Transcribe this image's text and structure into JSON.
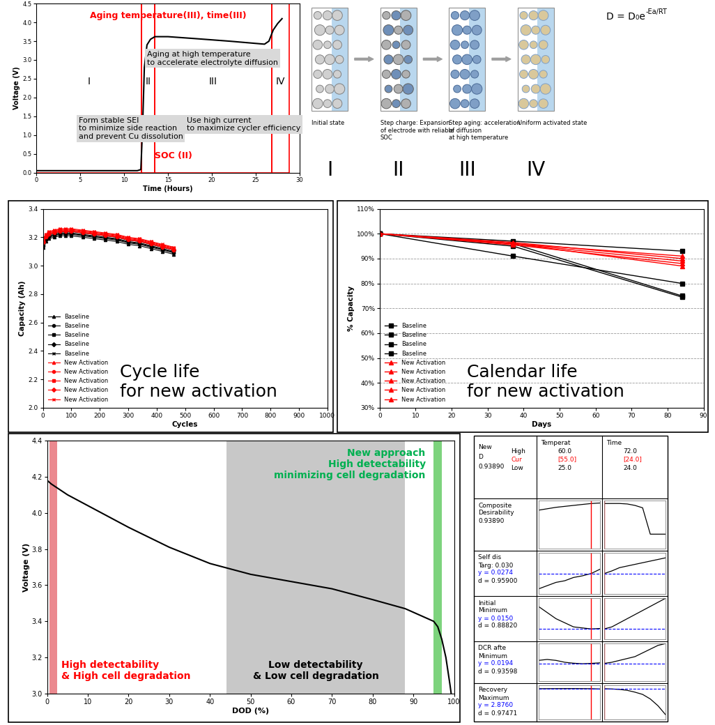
{
  "chart_data": [
    {
      "type": "line",
      "xlabel": "Time (Hours)",
      "ylabel": "Voltage (V)",
      "x": [
        0,
        5,
        11.5,
        11.9,
        12.1,
        12.3,
        12.6,
        13.0,
        13.5,
        15,
        18,
        22,
        26,
        26.5,
        27,
        27.5,
        28
      ],
      "values": [
        0.05,
        0.05,
        0.05,
        0.08,
        1.2,
        2.8,
        3.4,
        3.55,
        3.62,
        3.62,
        3.57,
        3.5,
        3.42,
        3.5,
        3.8,
        3.97,
        4.1
      ],
      "color": "#000000",
      "xlim": [
        0,
        30
      ],
      "ylim": [
        0,
        4.5
      ],
      "xticks": [
        0,
        5,
        10,
        15,
        20,
        25,
        30
      ],
      "yticks": [
        {
          "value": 0,
          "label": "0.0"
        },
        {
          "value": 0.5,
          "label": "0.5"
        },
        {
          "value": 1,
          "label": "1.0"
        },
        {
          "value": 1.5,
          "label": "1.5"
        },
        {
          "value": 2,
          "label": "2.0"
        },
        {
          "value": 2.5,
          "label": "2.5"
        },
        {
          "value": 3,
          "label": "3.0"
        },
        {
          "value": 3.5,
          "label": "3.5"
        },
        {
          "value": 4,
          "label": "4.0"
        },
        {
          "value": 4.5,
          "label": "4.5"
        }
      ],
      "regions": [
        {
          "label": "I",
          "x": [
            0,
            12
          ],
          "color": "#ff0000"
        },
        {
          "label": "II",
          "x": [
            12,
            13.5
          ],
          "color": "#ff0000"
        },
        {
          "label": "III",
          "x": [
            13.5,
            26.8
          ],
          "color": "#ff0000"
        },
        {
          "label": "IV",
          "x": [
            26.8,
            28.8
          ],
          "color": "#ff0000"
        }
      ],
      "annotations": [
        {
          "text": "Aging temperature(III), time(III)",
          "color": "#ff0000"
        },
        {
          "text": "Aging at high temperature\nto accelerate electrolyte diffusion",
          "color": "#000000"
        },
        {
          "text": "Form stable SEI\nto minimize side reaction\nand prevent Cu dissolution",
          "color": "#000000"
        },
        {
          "text": "Use high current\nto maximize cycler efficiency",
          "color": "#000000"
        },
        {
          "text": "SOC (II)",
          "color": "#ff0000"
        }
      ]
    },
    {
      "type": "line",
      "xlabel": "Cycles",
      "ylabel": "Capacity (Ah)",
      "x": [
        1,
        10,
        20,
        40,
        60,
        80,
        100,
        140,
        180,
        220,
        260,
        300,
        340,
        380,
        420,
        460
      ],
      "xlim": [
        0,
        1000
      ],
      "ylim": [
        2.0,
        3.4
      ],
      "xticks": [
        0,
        100,
        200,
        300,
        400,
        500,
        600,
        700,
        800,
        900,
        1000
      ],
      "yticks": [
        {
          "value": 2.0,
          "label": "2.0"
        },
        {
          "value": 2.2,
          "label": "2.2"
        },
        {
          "value": 2.4,
          "label": "2.4"
        },
        {
          "value": 2.6,
          "label": "2.6"
        },
        {
          "value": 2.8,
          "label": "2.8"
        },
        {
          "value": 3.0,
          "label": "3.0"
        },
        {
          "value": 3.2,
          "label": "3.2"
        },
        {
          "value": 3.4,
          "label": "3.4"
        }
      ],
      "legend": "lower left",
      "annotation": "Cycle life\nfor new activation",
      "series": [
        {
          "name": "Baseline",
          "color": "#000000",
          "marker": "triangle",
          "values": [
            3.13,
            3.17,
            3.19,
            3.2,
            3.21,
            3.21,
            3.21,
            3.2,
            3.19,
            3.18,
            3.17,
            3.15,
            3.14,
            3.12,
            3.1,
            3.08
          ]
        },
        {
          "name": "Baseline",
          "color": "#000000",
          "marker": "circle",
          "values": [
            3.14,
            3.18,
            3.2,
            3.21,
            3.22,
            3.22,
            3.22,
            3.21,
            3.2,
            3.19,
            3.18,
            3.16,
            3.15,
            3.13,
            3.11,
            3.09
          ]
        },
        {
          "name": "Baseline",
          "color": "#000000",
          "marker": "square",
          "values": [
            3.15,
            3.19,
            3.21,
            3.22,
            3.23,
            3.23,
            3.23,
            3.22,
            3.21,
            3.2,
            3.19,
            3.17,
            3.16,
            3.14,
            3.12,
            3.1
          ]
        },
        {
          "name": "Baseline",
          "color": "#000000",
          "marker": "diamond",
          "values": [
            3.16,
            3.2,
            3.22,
            3.23,
            3.24,
            3.24,
            3.24,
            3.23,
            3.22,
            3.21,
            3.2,
            3.18,
            3.17,
            3.15,
            3.13,
            3.11
          ]
        },
        {
          "name": "Baseline",
          "color": "#000000",
          "marker": "cross",
          "values": [
            3.145,
            3.185,
            3.205,
            3.215,
            3.225,
            3.225,
            3.225,
            3.215,
            3.205,
            3.195,
            3.185,
            3.165,
            3.155,
            3.135,
            3.115,
            3.095
          ]
        },
        {
          "name": "New Activation",
          "color": "#ff0000",
          "marker": "triangle",
          "values": [
            3.17,
            3.21,
            3.23,
            3.24,
            3.25,
            3.25,
            3.25,
            3.24,
            3.23,
            3.22,
            3.21,
            3.19,
            3.18,
            3.16,
            3.14,
            3.12
          ]
        },
        {
          "name": "New Activation",
          "color": "#ff0000",
          "marker": "circle",
          "values": [
            3.16,
            3.2,
            3.22,
            3.23,
            3.24,
            3.24,
            3.24,
            3.23,
            3.22,
            3.21,
            3.2,
            3.18,
            3.17,
            3.15,
            3.13,
            3.11
          ]
        },
        {
          "name": "New Activation",
          "color": "#ff0000",
          "marker": "square",
          "values": [
            3.175,
            3.215,
            3.235,
            3.245,
            3.255,
            3.255,
            3.255,
            3.245,
            3.235,
            3.225,
            3.215,
            3.195,
            3.185,
            3.165,
            3.145,
            3.125
          ]
        },
        {
          "name": "New Activation",
          "color": "#ff0000",
          "marker": "diamond",
          "values": [
            3.165,
            3.205,
            3.225,
            3.235,
            3.245,
            3.245,
            3.245,
            3.235,
            3.225,
            3.215,
            3.205,
            3.185,
            3.175,
            3.155,
            3.135,
            3.115
          ]
        },
        {
          "name": "New Activation",
          "color": "#ff0000",
          "marker": "cross",
          "values": [
            3.18,
            3.22,
            3.24,
            3.25,
            3.26,
            3.26,
            3.26,
            3.25,
            3.24,
            3.23,
            3.22,
            3.2,
            3.19,
            3.17,
            3.15,
            3.13
          ]
        }
      ]
    },
    {
      "type": "line",
      "xlabel": "Days",
      "ylabel": "% Capacity",
      "x": [
        0,
        37,
        84
      ],
      "xlim": [
        0,
        90
      ],
      "ylim": [
        30,
        110
      ],
      "xticks": [
        0,
        10,
        20,
        30,
        40,
        50,
        60,
        70,
        80,
        90
      ],
      "yticks": [
        {
          "value": 30,
          "label": "30%"
        },
        {
          "value": 40,
          "label": "40%"
        },
        {
          "value": 50,
          "label": "50%"
        },
        {
          "value": 60,
          "label": "60%"
        },
        {
          "value": 70,
          "label": "70%"
        },
        {
          "value": 80,
          "label": "80%"
        },
        {
          "value": 90,
          "label": "90%"
        },
        {
          "value": 100,
          "label": "100%"
        },
        {
          "value": 110,
          "label": "110%"
        }
      ],
      "grid": true,
      "legend": "lower left",
      "annotation": "Calendar life\nfor new activation",
      "series": [
        {
          "name": "Baseline",
          "color": "#000000",
          "marker": "square",
          "values": [
            100,
            97,
            93
          ]
        },
        {
          "name": "Baseline",
          "color": "#000000",
          "marker": "square",
          "values": [
            100,
            91,
            80
          ]
        },
        {
          "name": "Baseline",
          "color": "#000000",
          "marker": "square",
          "values": [
            100,
            96,
            75
          ]
        },
        {
          "name": "Baseline",
          "color": "#000000",
          "marker": "square",
          "values": [
            100,
            95,
            74.5
          ]
        },
        {
          "name": "New Activation",
          "color": "#ff0000",
          "marker": "triangle",
          "values": [
            100,
            96,
            91
          ]
        },
        {
          "name": "New Activation",
          "color": "#ff0000",
          "marker": "triangle",
          "values": [
            100,
            96.5,
            90
          ]
        },
        {
          "name": "New Activation",
          "color": "#ff0000",
          "marker": "triangle",
          "values": [
            100,
            96,
            89
          ]
        },
        {
          "name": "New Activation",
          "color": "#ff0000",
          "marker": "triangle",
          "values": [
            100,
            95.5,
            88
          ]
        },
        {
          "name": "New Activation",
          "color": "#ff0000",
          "marker": "triangle",
          "values": [
            100,
            96,
            87
          ]
        }
      ]
    },
    {
      "type": "line",
      "xlabel": "DOD (%)",
      "ylabel": "Voltage (V)",
      "x": [
        0,
        1,
        5,
        10,
        20,
        30,
        40,
        50,
        60,
        70,
        80,
        88,
        93,
        95,
        96,
        97,
        98,
        99,
        99.3
      ],
      "values": [
        4.18,
        4.16,
        4.1,
        4.04,
        3.92,
        3.81,
        3.72,
        3.66,
        3.62,
        3.58,
        3.52,
        3.47,
        3.42,
        3.4,
        3.37,
        3.3,
        3.2,
        3.05,
        3.0
      ],
      "color": "#000000",
      "xlim": [
        0,
        100
      ],
      "ylim": [
        3.0,
        4.4
      ],
      "xticks": [
        0,
        10,
        20,
        30,
        40,
        50,
        60,
        70,
        80,
        90,
        100
      ],
      "yticks": [
        {
          "value": 3.0,
          "label": "3.0"
        },
        {
          "value": 3.2,
          "label": "3.2"
        },
        {
          "value": 3.4,
          "label": "3.4"
        },
        {
          "value": 3.6,
          "label": "3.6"
        },
        {
          "value": 3.8,
          "label": "3.8"
        },
        {
          "value": 4.0,
          "label": "4.0"
        },
        {
          "value": 4.2,
          "label": "4.2"
        },
        {
          "value": 4.4,
          "label": "4.4"
        }
      ],
      "regions": [
        {
          "x": [
            0.5,
            2.5
          ],
          "color": "#e8747c",
          "label": "High detectability\n& High cell degradation",
          "label_color": "#ff0000"
        },
        {
          "x": [
            44,
            88
          ],
          "color": "#bfbfbf",
          "label": "Low detectability\n& Low cell degradation",
          "label_color": "#000000"
        },
        {
          "x": [
            95,
            97
          ],
          "color": "#66cc66",
          "label": "New approach\nHigh detectability\nminimizing cell degradation",
          "label_color": "#00b050"
        }
      ]
    }
  ],
  "diagram": {
    "panels": [
      {
        "caption": "Initial state",
        "numeral": "I"
      },
      {
        "caption": "Step charge: Expansion\nof electrode with reliable\nSOC",
        "numeral": "II"
      },
      {
        "caption": "Step aging: acceleration\nof diffusion\nat high temperature",
        "numeral": "III"
      },
      {
        "caption": "Uniform activated state",
        "numeral": "IV"
      }
    ],
    "formula": {
      "text": "D = D₀e",
      "superscript": "-Ea/RT"
    }
  },
  "profiler": {
    "tick_labels": false,
    "header": {
      "lines": [
        "New",
        "D",
        "0.93890"
      ],
      "levels": [
        "High",
        "Cur",
        "Low"
      ]
    },
    "factors": [
      {
        "name": "Temperat",
        "printed": [
          "60.0",
          "[55.0]",
          "25.0"
        ],
        "xlim": [
          25,
          60
        ],
        "current": 55,
        "x": [
          25,
          30,
          35,
          40,
          45,
          50,
          55,
          60
        ]
      },
      {
        "name": "Time",
        "printed": [
          "72.0",
          "[24.0]",
          "24.0"
        ],
        "xlim": [
          24,
          72
        ],
        "current": 24,
        "x": [
          24,
          30,
          36,
          42,
          48,
          54,
          60,
          66,
          72
        ]
      }
    ],
    "rows": [
      {
        "name_lines": [
          "Composite",
          "Desirability",
          "0.93890"
        ],
        "ylim": [
          0,
          1
        ],
        "series": [
          [
            0.8,
            0.83,
            0.86,
            0.88,
            0.9,
            0.92,
            0.939,
            0.95
          ],
          [
            0.939,
            0.94,
            0.94,
            0.93,
            0.9,
            0.85,
            0.3,
            0.3,
            0.3
          ]
        ]
      },
      {
        "name_lines": [
          "Self dis",
          "Targ: 0.030"
        ],
        "y_text": "y = 0.0274",
        "d_text": "d = 0.95900",
        "y": 0.0274,
        "ylim": [
          0.015,
          0.04
        ],
        "series": [
          [
            0.018,
            0.02,
            0.022,
            0.023,
            0.025,
            0.026,
            0.0274,
            0.03
          ],
          [
            0.0274,
            0.029,
            0.031,
            0.032,
            0.033,
            0.034,
            0.035,
            0.036,
            0.037
          ]
        ]
      },
      {
        "name_lines": [
          "Initial",
          "Minimum"
        ],
        "y_text": "y = 0.0150",
        "d_text": "d = 0.88820",
        "y": 0.015,
        "ylim": [
          0.01,
          0.03
        ],
        "series": [
          [
            0.026,
            0.023,
            0.02,
            0.018,
            0.016,
            0.0155,
            0.015,
            0.0152
          ],
          [
            0.015,
            0.016,
            0.018,
            0.02,
            0.022,
            0.024,
            0.026,
            0.028,
            0.03
          ]
        ]
      },
      {
        "name_lines": [
          "DCR afte",
          "Minimum"
        ],
        "y_text": "y = 0.0194",
        "d_text": "d = 0.93598",
        "y": 0.0194,
        "ylim": [
          0.01,
          0.03
        ],
        "series": [
          [
            0.021,
            0.0215,
            0.021,
            0.02,
            0.0195,
            0.0192,
            0.0194,
            0.0197
          ],
          [
            0.0194,
            0.02,
            0.021,
            0.022,
            0.023,
            0.025,
            0.027,
            0.029,
            0.03
          ]
        ]
      },
      {
        "name_lines": [
          "Recovery",
          "Maximum"
        ],
        "y_text": "y = 2.8760",
        "d_text": "d = 0.97471",
        "y": 2.876,
        "ylim": [
          2.2,
          2.95
        ],
        "series": [
          [
            2.876,
            2.877,
            2.878,
            2.879,
            2.879,
            2.878,
            2.876,
            2.87
          ],
          [
            2.876,
            2.87,
            2.86,
            2.84,
            2.8,
            2.75,
            2.65,
            2.5,
            2.3
          ]
        ]
      }
    ]
  }
}
